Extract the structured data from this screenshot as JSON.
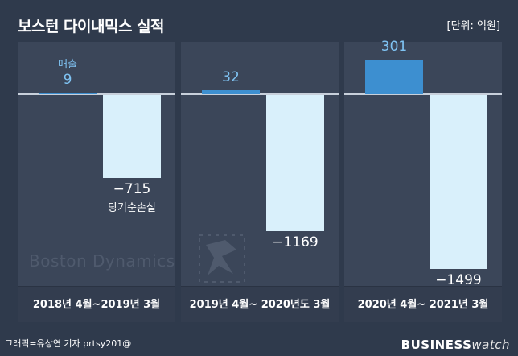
{
  "header": {
    "title": "보스턴 다이내믹스 실적",
    "unit": "[단위: 억원]"
  },
  "chart_data": {
    "type": "bar",
    "categories": [
      "2018년 4월~2019년 3월",
      "2019년 4월~ 2020년도 3월",
      "2020년 4월~ 2021년 3월"
    ],
    "series": [
      {
        "name": "매출",
        "values": [
          9,
          32,
          301
        ],
        "labels": [
          "9",
          "32",
          "301"
        ],
        "color": "#3d8fd0"
      },
      {
        "name": "당기순손실",
        "values": [
          -715,
          -1169,
          -1499
        ],
        "labels": [
          "−715",
          "−1169",
          "−1499"
        ],
        "color": "#d9f0fb"
      }
    ],
    "ylim": [
      -1499,
      301
    ],
    "grid": false
  },
  "watermark": {
    "text": "Boston Dynamics"
  },
  "footer": {
    "credit": "그래픽=유상연 기자 prtsy201@",
    "brand_bold": "BUSINESS",
    "brand_light": "watch"
  }
}
